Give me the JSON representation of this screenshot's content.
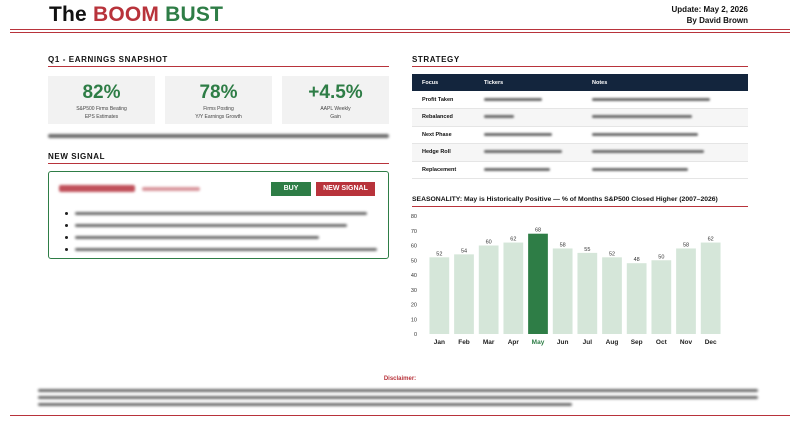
{
  "header": {
    "brand_parts": [
      "The",
      "BOOM",
      "BUST"
    ],
    "update": "Update: May 2, 2026",
    "byline": "By David Brown"
  },
  "snapshot": {
    "title": "Q1 - EARNINGS SNAPSHOT",
    "stats": [
      {
        "value": "82%",
        "label_line1": "S&P500 Firms Beating",
        "label_line2": "EPS Estimates"
      },
      {
        "value": "78%",
        "label_line1": "Firms Posting",
        "label_line2": "Y/Y Earnings Growth"
      },
      {
        "value": "+4.5%",
        "label_line1": "AAPL Weekly",
        "label_line2": "Gain"
      }
    ]
  },
  "signal": {
    "title": "NEW SIGNAL",
    "buy_label": "BUY",
    "new_signal_label": "NEW SIGNAL"
  },
  "strategy": {
    "title": "STRATEGY",
    "columns": [
      "Focus",
      "Tickers",
      "Notes"
    ],
    "rows": [
      {
        "focus": "Profit Taken"
      },
      {
        "focus": "Rebalanced"
      },
      {
        "focus": "Next Phase"
      },
      {
        "focus": "Hedge Roll"
      },
      {
        "focus": "Replacement"
      }
    ]
  },
  "chart_data": {
    "type": "bar",
    "title": "SEASONALITY: May is Historically Positive — % of Months S&P500 Closed Higher (2007–2026)",
    "categories": [
      "Jan",
      "Feb",
      "Mar",
      "Apr",
      "May",
      "Jun",
      "Jul",
      "Aug",
      "Sep",
      "Oct",
      "Nov",
      "Dec"
    ],
    "values": [
      52,
      54,
      60,
      62,
      68,
      58,
      55,
      52,
      48,
      50,
      58,
      62
    ],
    "highlight": "May",
    "ylim": [
      0,
      80
    ],
    "yticks": [
      0,
      10,
      20,
      30,
      40,
      50,
      60,
      70,
      80
    ],
    "xlabel": "",
    "ylabel": "",
    "grid": false,
    "colors": {
      "bar": "#d5e6d9",
      "highlight": "#2e7d46"
    }
  },
  "footer": {
    "disclaimer_label": "Disclaimer:"
  },
  "colors": {
    "red": "#b8333b",
    "green": "#2e7d46",
    "navy": "#13253d"
  }
}
